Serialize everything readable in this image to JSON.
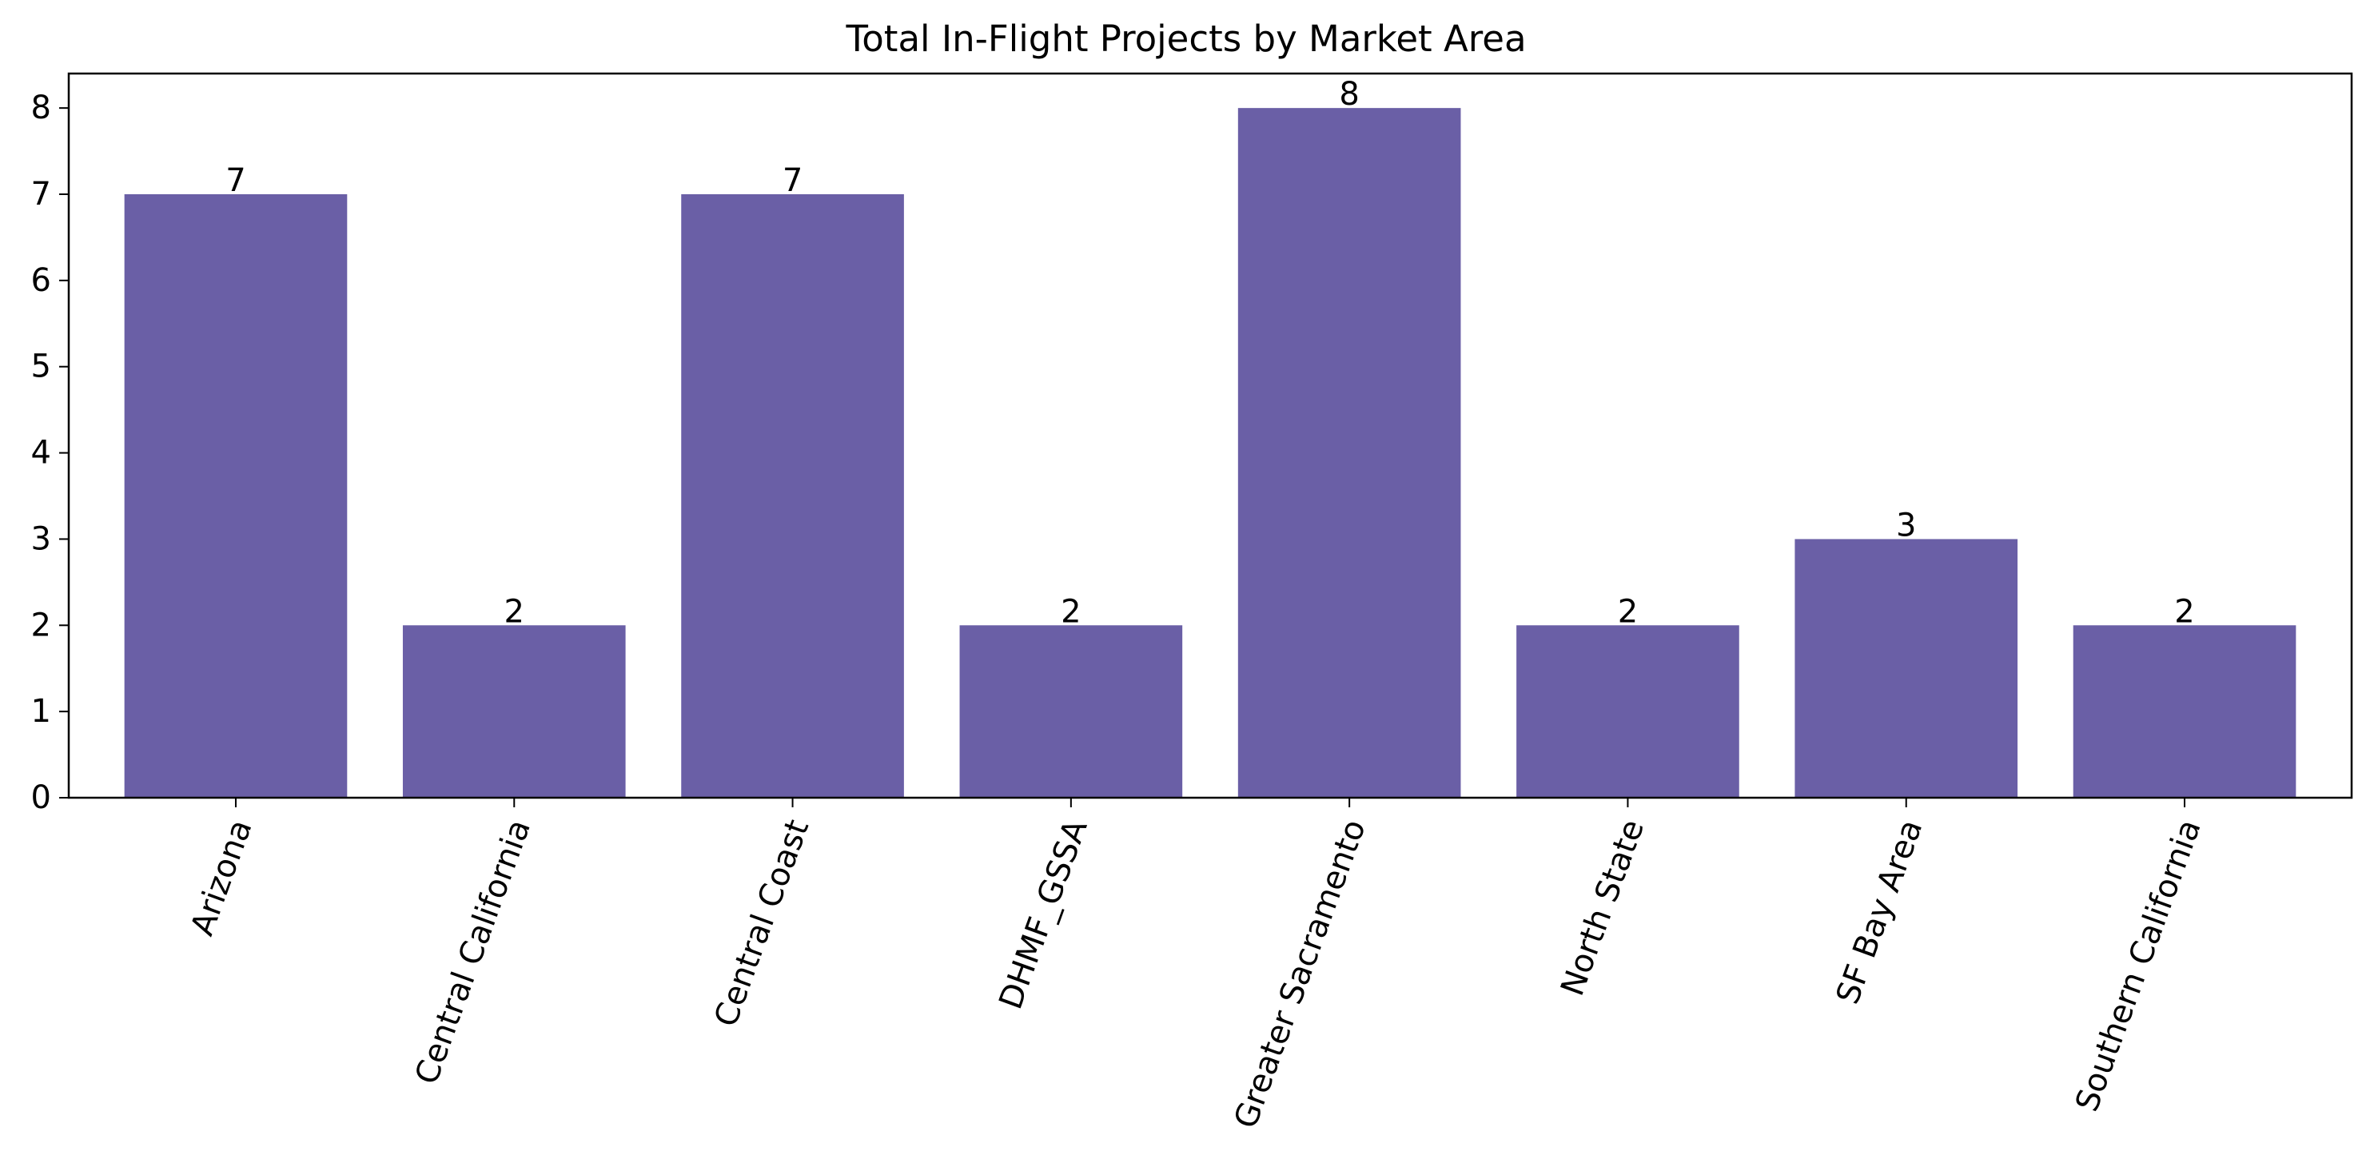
{
  "chart_data": {
    "type": "bar",
    "title": "Total In-Flight Projects by Market Area",
    "xlabel": "",
    "ylabel": "",
    "categories": [
      "Arizona",
      "Central California",
      "Central Coast",
      "DHMF_GSSA",
      "Greater Sacramento",
      "North State",
      "SF Bay Area",
      "Southern California"
    ],
    "values": [
      7,
      2,
      7,
      2,
      8,
      2,
      3,
      2
    ],
    "ylim": [
      0,
      8.4
    ],
    "yticks": [
      0,
      1,
      2,
      3,
      4,
      5,
      6,
      7,
      8
    ],
    "bar_color": "#6a5fa6",
    "grid": false,
    "legend": "none",
    "data_labels": true,
    "x_tick_rotation": "70 degrees"
  }
}
